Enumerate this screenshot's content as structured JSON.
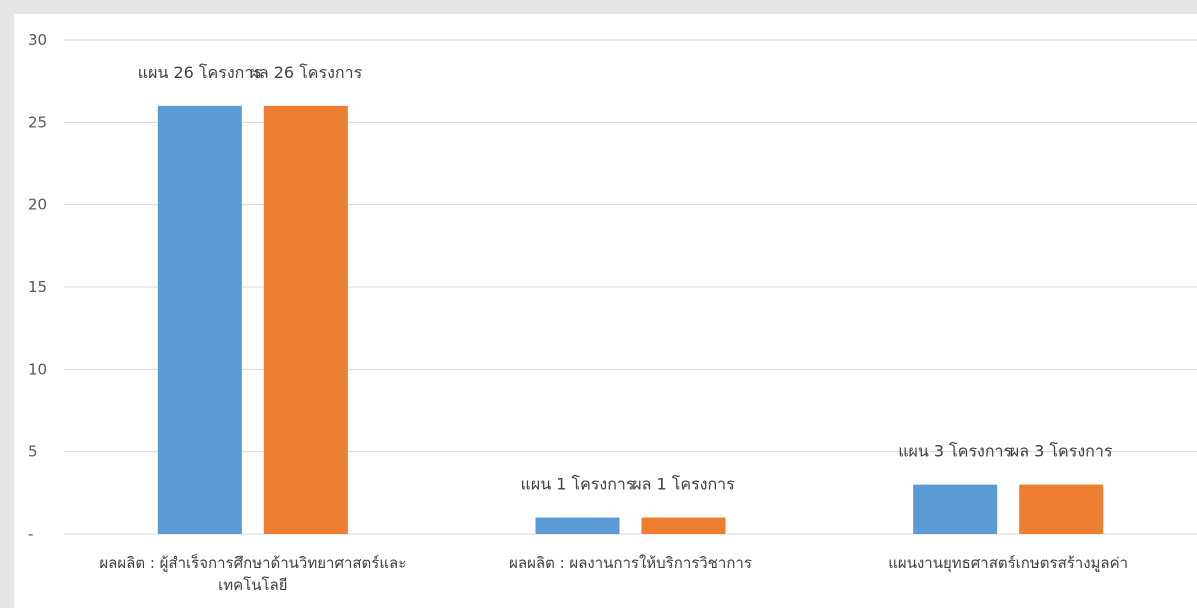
{
  "chart_data": {
    "type": "bar",
    "categories": [
      [
        "ผลผลิต : ผู้สำเร็จการศึกษาด้านวิทยาศาสตร์และ",
        "เทคโนโลยี"
      ],
      [
        "ผลผลิต : ผลงานการให้บริการวิชาการ"
      ],
      [
        "แผนงานยุทธศาสตร์เกษตรสร้างมูลค่า"
      ]
    ],
    "series": [
      {
        "color": "#5b9bd5",
        "values": [
          26,
          1,
          3
        ],
        "labels": [
          "แผน 26 โครงการ",
          "แผน  1  โครงการ",
          "แผน  3  โครงการ"
        ]
      },
      {
        "color": "#ed7d31",
        "values": [
          26,
          1,
          3
        ],
        "labels": [
          "ผล  26  โครงการ",
          "ผล  1  โครงการ",
          "ผล  3  โครงการ"
        ]
      }
    ],
    "y_ticks": [
      "-",
      "5",
      "10",
      "15",
      "20",
      "25",
      "30"
    ],
    "ylim": [
      0,
      30
    ],
    "grid": true,
    "legend": "none"
  }
}
